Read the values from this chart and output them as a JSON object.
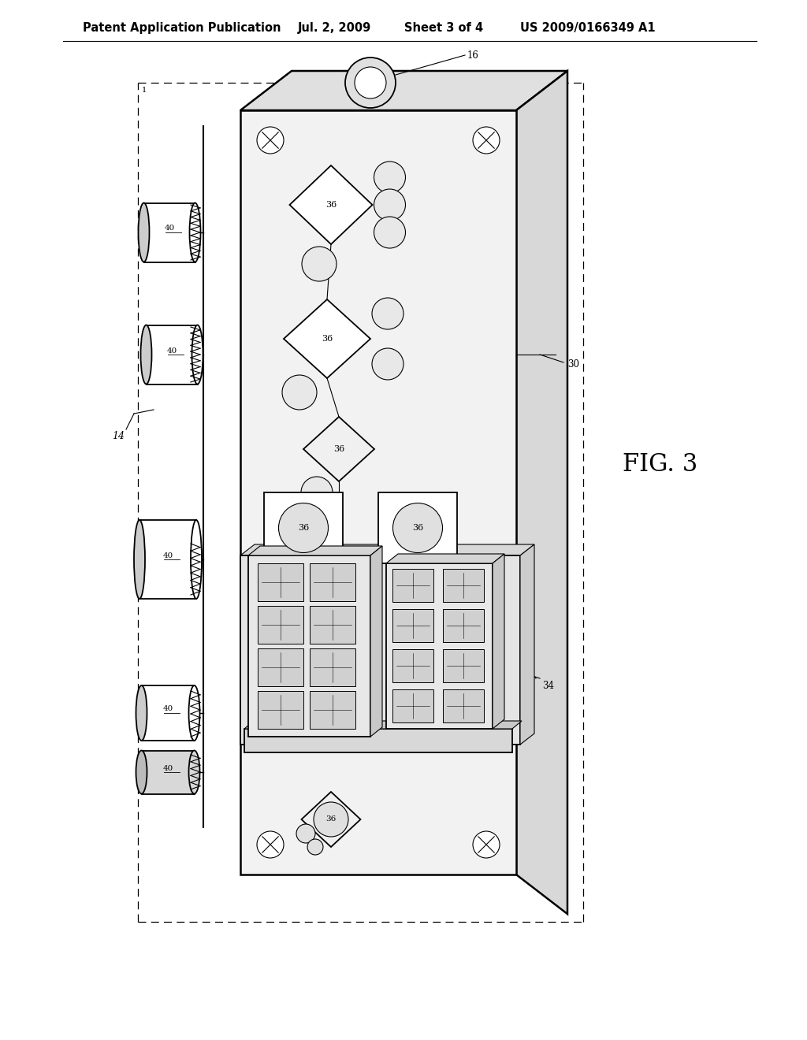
{
  "title": "Patent Application Publication",
  "date": "Jul. 2, 2009",
  "sheet": "Sheet 3 of 4",
  "patent_num": "US 2009/0166349 A1",
  "fig_label": "FIG. 3",
  "bg_color": "#ffffff",
  "line_color": "#000000",
  "header_fontsize": 10.5,
  "label_fontsize": 9,
  "fig_label_fontsize": 22,
  "panel_fc": "#f2f2f2",
  "panel_top_fc": "#e0e0e0",
  "panel_right_fc": "#d8d8d8",
  "display_fc": "#e8e8e8",
  "display_inner_fc": "#d0d0d0",
  "cyl_fc": "#f5f5f5",
  "cyl_shadow_fc": "#c8c8c8"
}
